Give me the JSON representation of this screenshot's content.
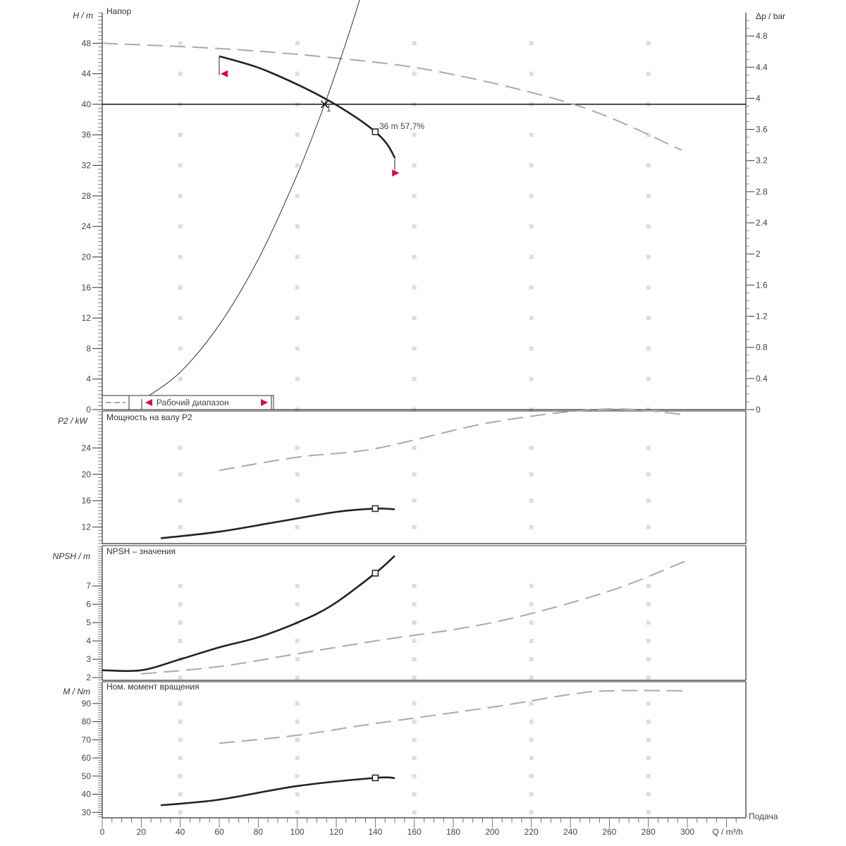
{
  "chart_data": [
    {
      "type": "line",
      "title": "Напор",
      "ylabel": "H / m",
      "y2label": "Δp / bar",
      "xlabel": "Q / m³/h",
      "xlim": [
        0,
        330
      ],
      "ylim": [
        0,
        52
      ],
      "y2lim": [
        0,
        5.1
      ],
      "yticks": [
        0,
        4,
        8,
        12,
        16,
        20,
        24,
        28,
        32,
        36,
        40,
        44,
        48
      ],
      "y2ticks": [
        "0",
        "0.4",
        "0.8",
        "1.2",
        "1.6",
        "2",
        "2.4",
        "2.8",
        "3.2",
        "3.6",
        "4",
        "4.4",
        "4.8"
      ],
      "grid": true,
      "series": [
        {
          "style": "solid-thick",
          "x": [
            60,
            80,
            100,
            116,
            130,
            140,
            146,
            150
          ],
          "y": [
            46.3,
            44.8,
            42.6,
            40.5,
            38.3,
            36.4,
            34.8,
            33.0
          ]
        },
        {
          "style": "dashed-grey",
          "x": [
            0,
            60,
            114,
            172,
            244,
            297
          ],
          "y": [
            48,
            47.3,
            46.2,
            44.3,
            39.8,
            34.0
          ]
        },
        {
          "style": "thin-system",
          "x": [
            22,
            40,
            60,
            80,
            100,
            114,
            125,
            132
          ],
          "y": [
            1.5,
            4.9,
            11.1,
            19.7,
            30.8,
            40,
            48.1,
            53.7
          ]
        }
      ],
      "operating_point": {
        "q": 114,
        "h": 40,
        "label": "1"
      },
      "reference_line_h": 40,
      "point_annotation": {
        "q": 140,
        "h": 36.4,
        "text": "36 m   57,7%"
      },
      "range_markers": [
        {
          "q": 60,
          "h": 44,
          "dir": "left"
        },
        {
          "q": 149,
          "h": 31,
          "dir": "right"
        }
      ],
      "legend": {
        "label": "Рабочий диапазон",
        "placement": "bottom-left"
      }
    },
    {
      "type": "line",
      "title": "Мощность на валу P2",
      "ylabel": "P2 / kW",
      "ylim": [
        9.5,
        29.6
      ],
      "yticks": [
        12,
        16,
        20,
        24
      ],
      "series": [
        {
          "style": "solid-thick",
          "x": [
            30,
            60,
            90,
            120,
            140,
            150
          ],
          "y": [
            10.3,
            11.3,
            12.8,
            14.3,
            14.8,
            14.7
          ]
        },
        {
          "style": "dashed-grey",
          "x": [
            60,
            100,
            140,
            200,
            258,
            300
          ],
          "y": [
            20.6,
            22.6,
            23.9,
            27.9,
            29.9,
            29.0
          ]
        }
      ],
      "marker": {
        "q": 140,
        "v": 14.8
      }
    },
    {
      "type": "line",
      "title": "NPSH – значения",
      "ylabel": "NPSH / m",
      "ylim": [
        1.85,
        9.2
      ],
      "yticks": [
        2,
        3,
        4,
        5,
        6,
        7
      ],
      "series": [
        {
          "style": "solid-thick",
          "x": [
            0,
            20,
            40,
            60,
            80,
            100,
            118,
            140,
            150
          ],
          "y": [
            2.4,
            2.4,
            3.0,
            3.65,
            4.2,
            5.0,
            5.96,
            7.7,
            8.65
          ]
        },
        {
          "style": "dashed-grey",
          "x": [
            20,
            60,
            100,
            140,
            200,
            258,
            300
          ],
          "y": [
            2.2,
            2.6,
            3.3,
            4.0,
            5.0,
            6.65,
            8.4
          ]
        }
      ],
      "marker": {
        "q": 140,
        "v": 7.7
      }
    },
    {
      "type": "line",
      "title": "Ном. момент вращения",
      "ylabel": "M / Nm",
      "ylim": [
        27,
        102
      ],
      "yticks": [
        30,
        40,
        50,
        60,
        70,
        80,
        90
      ],
      "series": [
        {
          "style": "solid-thick",
          "x": [
            30,
            60,
            100,
            140,
            150
          ],
          "y": [
            33.9,
            37,
            44.5,
            49,
            48.9
          ]
        },
        {
          "style": "dashed-grey",
          "x": [
            60,
            100,
            140,
            200,
            240,
            260,
            300
          ],
          "y": [
            68.1,
            72.5,
            79,
            88,
            95,
            97,
            97
          ]
        }
      ],
      "marker": {
        "q": 140,
        "v": 49
      },
      "xticks": [
        0,
        20,
        40,
        60,
        80,
        100,
        120,
        140,
        160,
        180,
        200,
        220,
        240,
        260,
        280,
        300
      ],
      "xlabel": "Q / m³/h",
      "x2label": "Подача"
    }
  ],
  "colors": {
    "curve": "#222222",
    "dashed": "#aaaaaa",
    "marker_red": "#e0004d",
    "grid": "#dddddd",
    "axis": "#333333"
  }
}
